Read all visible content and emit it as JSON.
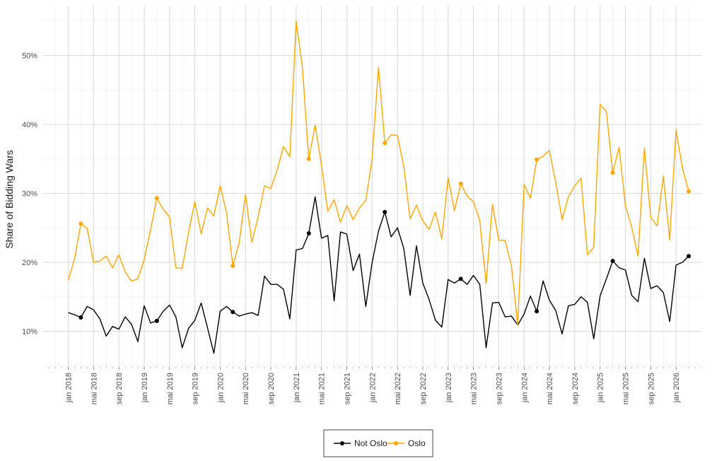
{
  "chart_data": {
    "type": "line",
    "title": "",
    "xlabel": "",
    "ylabel": "Share of Bidding Wars",
    "x_start": "2018-01",
    "x_ticks": [
      "jan 2018",
      "mai 2018",
      "sep 2018",
      "jan 2019",
      "mai 2019",
      "sep 2019",
      "jan 2020",
      "mai 2020",
      "sep 2020",
      "jan 2021",
      "mai 2021",
      "sep 2021",
      "jan 2022",
      "mai 2022",
      "sep 2022",
      "jan 2023",
      "mai 2023",
      "sep 2023",
      "jan 2024",
      "mai 2024",
      "sep 2024",
      "jan 2025",
      "mai 2025",
      "sep 2025",
      "jan 2026"
    ],
    "y_ticks": [
      "10%",
      "20%",
      "30%",
      "40%",
      "50%"
    ],
    "ylim": [
      5,
      56
    ],
    "grid": true,
    "legend_position": "bottom",
    "series": [
      {
        "name": "Not Oslo",
        "color": "#000000",
        "values": [
          12.7,
          12.4,
          12.0,
          13.6,
          13.1,
          11.8,
          9.3,
          10.7,
          10.3,
          12.1,
          11.0,
          8.5,
          13.7,
          11.2,
          11.5,
          12.9,
          13.8,
          12.1,
          7.6,
          10.4,
          11.6,
          14.1,
          10.5,
          6.8,
          12.9,
          13.6,
          12.8,
          12.2,
          12.5,
          12.7,
          12.3,
          18.0,
          16.8,
          16.8,
          16.1,
          11.8,
          21.8,
          22.0,
          24.2,
          29.5,
          23.5,
          23.9,
          14.4,
          24.4,
          24.1,
          18.8,
          21.2,
          13.6,
          20.0,
          24.5,
          27.3,
          23.7,
          25.0,
          22.0,
          15.2,
          22.4,
          17.0,
          14.6,
          11.6,
          10.6,
          17.5,
          17.0,
          17.6,
          16.8,
          18.1,
          16.8,
          7.6,
          14.1,
          14.2,
          12.1,
          12.2,
          10.9,
          12.5,
          15.1,
          12.9,
          17.3,
          14.5,
          13.0,
          9.6,
          13.7,
          13.9,
          15.0,
          14.2,
          8.9,
          15.1,
          17.6,
          20.2,
          19.2,
          18.9,
          15.2,
          14.3,
          20.6,
          16.2,
          16.6,
          15.6,
          11.4,
          19.6,
          20.0,
          20.9
        ],
        "marker_indices": [
          2,
          14,
          26,
          38,
          50,
          62,
          74,
          86,
          98
        ]
      },
      {
        "name": "Oslo",
        "color": "#FFA500",
        "values": [
          17.4,
          20.5,
          25.6,
          24.9,
          20.0,
          20.2,
          20.9,
          19.2,
          21.1,
          18.6,
          17.3,
          17.6,
          20.4,
          24.7,
          29.3,
          27.7,
          26.6,
          19.2,
          19.1,
          24.3,
          28.8,
          24.1,
          27.9,
          26.7,
          31.1,
          27.2,
          19.5,
          22.8,
          29.8,
          22.9,
          26.6,
          31.1,
          30.7,
          33.4,
          36.8,
          35.3,
          55.0,
          48.1,
          35.0,
          39.9,
          34.1,
          27.4,
          29.1,
          25.8,
          28.2,
          26.2,
          27.9,
          29.0,
          35.0,
          48.3,
          37.3,
          38.5,
          38.4,
          33.9,
          26.3,
          28.3,
          26.0,
          24.8,
          27.3,
          23.4,
          32.3,
          27.5,
          31.4,
          29.6,
          28.8,
          26.1,
          16.9,
          28.4,
          23.2,
          23.2,
          19.5,
          10.9,
          31.3,
          29.3,
          34.9,
          35.4,
          36.2,
          31.6,
          26.2,
          29.5,
          31.1,
          32.2,
          21.1,
          22.2,
          42.9,
          41.9,
          33.0,
          36.7,
          28.2,
          25.1,
          20.9,
          36.6,
          26.5,
          25.3,
          32.5,
          23.2,
          39.2,
          33.7,
          30.3
        ],
        "marker_indices": [
          2,
          14,
          26,
          38,
          50,
          62,
          74,
          86,
          98
        ]
      }
    ]
  }
}
